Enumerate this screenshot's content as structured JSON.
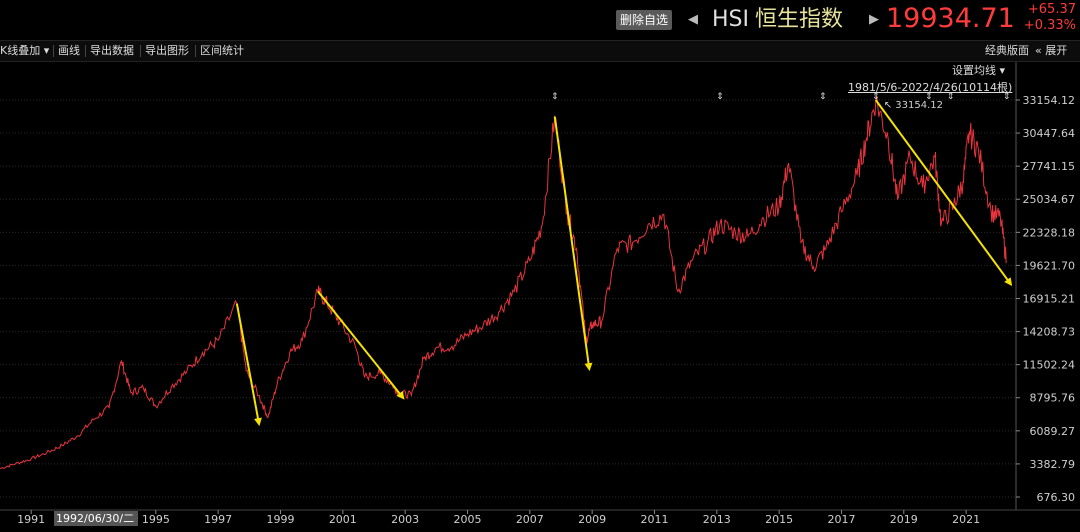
{
  "header": {
    "remove_btn": "删除自选",
    "prev_arrow": "◀",
    "next_arrow": "▶",
    "symbol": "HSI",
    "name": "恒生指数",
    "price": "19934.71",
    "change": "+65.37",
    "change_pct": "+0.33%"
  },
  "toolbar": {
    "items": [
      "K线叠加 ▾",
      "画线",
      "导出数据",
      "导出图形",
      "区间统计"
    ],
    "right_items": [
      "经典版面",
      "« 展开"
    ]
  },
  "chart_ui": {
    "set_ma": "设置均线 ▾",
    "range_label": "1981/5/6-2022/4/26(10114根)",
    "cursor_date": "1992/06/30/二",
    "max_label": "33154.12",
    "line_color": "#e8343c",
    "arrow_color": "#f5e400"
  },
  "chart_data": {
    "type": "line",
    "title": "",
    "y_ticks": [
      33154.12,
      30447.64,
      27741.15,
      25034.67,
      22328.18,
      19621.7,
      16915.21,
      14208.73,
      11502.24,
      8795.76,
      6089.27,
      3382.79,
      676.3
    ],
    "y_tick_labels": [
      "33154.12",
      "30447.64",
      "27741.15",
      "25034.67",
      "22328.18",
      "19621.70",
      "16915.21",
      "14208.73",
      "11502.24",
      "8795.76",
      "6089.27",
      "3382.79",
      "676.30"
    ],
    "x_ticks": [
      "1991",
      "1995",
      "1997",
      "1999",
      "2001",
      "2003",
      "2005",
      "2007",
      "2009",
      "2011",
      "2013",
      "2015",
      "2017",
      "2019",
      "2021"
    ],
    "ylim": [
      676.3,
      33154.12
    ],
    "series": [
      {
        "x": [
          1990.0,
          1990.5,
          1991.0,
          1991.5,
          1992.0,
          1992.5,
          1993.0,
          1993.5,
          1993.9,
          1994.2,
          1994.6,
          1995.0,
          1995.5,
          1996.0,
          1996.5,
          1997.0,
          1997.6,
          1997.9,
          1998.3,
          1998.6,
          1998.9,
          1999.3,
          1999.7,
          2000.2,
          2000.5,
          2000.9,
          2001.4,
          2001.7,
          2002.2,
          2002.6,
          2002.8,
          2003.2,
          2003.6,
          2004.0,
          2004.5,
          2005.0,
          2005.5,
          2006.0,
          2006.5,
          2007.0,
          2007.4,
          2007.8,
          2008.2,
          2008.5,
          2008.8,
          2009.0,
          2009.3,
          2009.8,
          2010.3,
          2010.8,
          2011.3,
          2011.75,
          2012.2,
          2012.7,
          2013.1,
          2013.6,
          2014.0,
          2014.5,
          2015.0,
          2015.3,
          2015.7,
          2016.1,
          2016.5,
          2017.0,
          2017.5,
          2017.8,
          2018.1,
          2018.5,
          2018.8,
          2019.2,
          2019.6,
          2020.0,
          2020.2,
          2020.6,
          2020.9,
          2021.1,
          2021.4,
          2021.8,
          2022.1,
          2022.3
        ],
        "values": [
          3000,
          3400,
          3800,
          4300,
          4900,
          5700,
          7000,
          8000,
          11800,
          9200,
          9600,
          8100,
          9700,
          11000,
          12500,
          13500,
          16500,
          11000,
          9000,
          7200,
          10000,
          12500,
          13500,
          17500,
          16500,
          15000,
          13000,
          10500,
          10800,
          9800,
          9200,
          9000,
          12000,
          12900,
          13000,
          14000,
          14700,
          15800,
          17500,
          20000,
          23000,
          31800,
          24000,
          21000,
          13500,
          14800,
          15000,
          21000,
          21500,
          23000,
          23800,
          17500,
          20000,
          21500,
          23000,
          22300,
          22000,
          23500,
          24500,
          28000,
          21500,
          19500,
          21000,
          24000,
          27000,
          30000,
          33154,
          30000,
          25000,
          28500,
          26000,
          28500,
          23000,
          24500,
          26500,
          30500,
          29000,
          24000,
          23500,
          19934.71
        ]
      }
    ]
  }
}
